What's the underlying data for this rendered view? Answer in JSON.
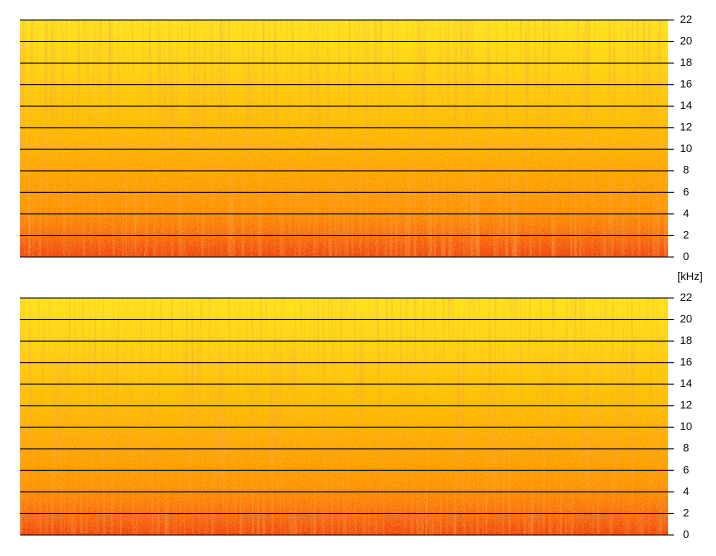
{
  "chart_data": [
    {
      "type": "spectrogram",
      "ylim": [
        0,
        22
      ],
      "yticks": [
        0,
        2,
        4,
        6,
        8,
        10,
        12,
        14,
        16,
        18,
        20,
        22
      ],
      "grid": true,
      "ylabel": "[kHz]"
    },
    {
      "type": "spectrogram",
      "ylim": [
        0,
        22
      ],
      "yticks": [
        0,
        2,
        4,
        6,
        8,
        10,
        12,
        14,
        16,
        18,
        20,
        22
      ],
      "grid": true
    }
  ]
}
